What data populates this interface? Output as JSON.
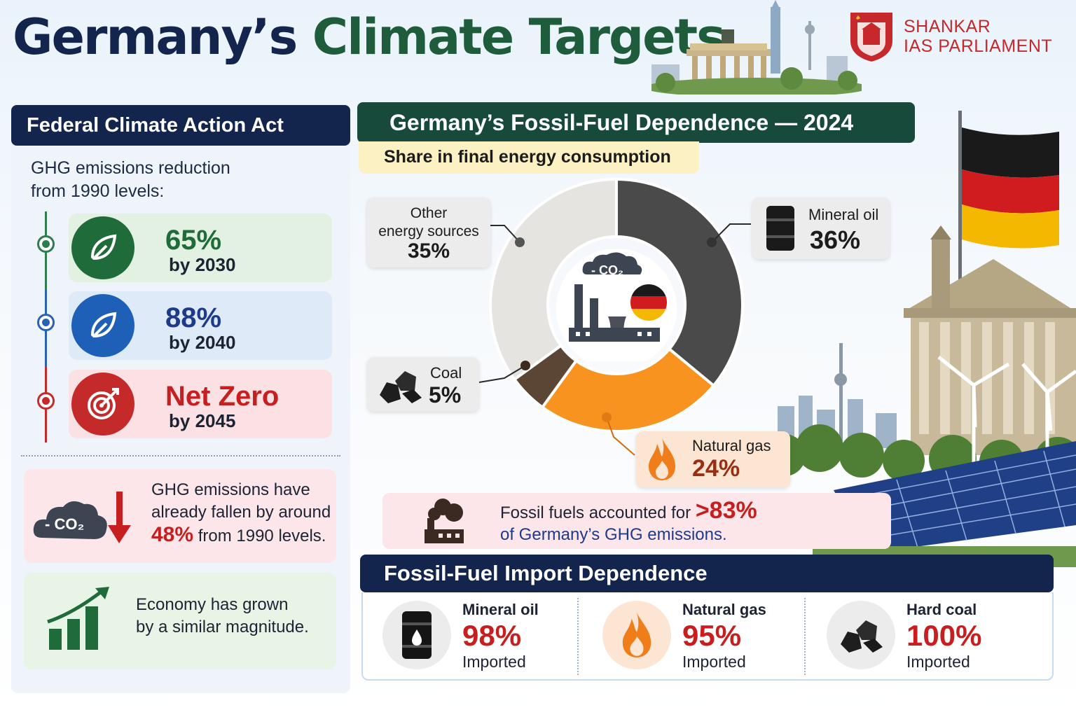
{
  "header": {
    "title_part1": "Germany’s",
    "title_part2": "Climate Targets",
    "logo_line1": "SHANKAR",
    "logo_line2": "IAS PARLIAMENT"
  },
  "left_panel": {
    "heading": "Federal Climate Action Act",
    "subtitle_line1": "GHG emissions reduction",
    "subtitle_line2": "from 1990 levels:",
    "targets": [
      {
        "value": "65%",
        "by": "by 2030",
        "color": "#1f6b3a",
        "bg": "#e2f1e1",
        "icon": "leaf-icon"
      },
      {
        "value": "88%",
        "by": "by 2040",
        "color": "#1e3a8a",
        "bg": "#dfeaf8",
        "icon": "leaf-icon"
      },
      {
        "value": "Net Zero",
        "by": "by 2045",
        "color": "#c71f1f",
        "bg": "#fbe1e4",
        "icon": "target-icon"
      }
    ],
    "fact1": {
      "line1": "GHG emissions have",
      "line2": "already fallen by around",
      "number": "48%",
      "line3_rest": " from 1990 levels.",
      "cloud_label": "- CO₂"
    },
    "fact2": {
      "line1": "Economy has grown",
      "line2": "by a similar magnitude."
    }
  },
  "chart_section": {
    "heading": "Germany’s Fossil-Fuel Dependence — 2024",
    "subheading": "Share in final energy consumption",
    "center_cloud_label": "- CO₂",
    "callouts": {
      "other_line1": "Other",
      "other_line2": "energy sources",
      "other_value": "35%",
      "oil_label": "Mineral oil",
      "oil_value": "36%",
      "coal_label": "Coal",
      "coal_value": "5%",
      "gas_label": "Natural gas",
      "gas_value": "24%"
    },
    "fossil_note": {
      "line1": "Fossil fuels accounted for ",
      "number": ">83%",
      "line2": "of Germany’s GHG emissions."
    }
  },
  "chart_data": {
    "type": "pie",
    "categories": [
      "Mineral oil",
      "Natural gas",
      "Coal",
      "Other energy sources"
    ],
    "values": [
      36,
      24,
      5,
      35
    ],
    "unit": "%",
    "colors": [
      "#4a4a4a",
      "#f7931e",
      "#5b4636",
      "#e6e4e0"
    ],
    "title": "Germany’s Fossil-Fuel Dependence — 2024",
    "subtitle": "Share in final energy consumption"
  },
  "imports": {
    "heading": "Fossil-Fuel Import Dependence",
    "items": [
      {
        "name": "Mineral oil",
        "value": "98%",
        "label": "Imported",
        "icon": "oil-barrel-icon"
      },
      {
        "name": "Natural gas",
        "value": "95%",
        "label": "Imported",
        "icon": "flame-icon"
      },
      {
        "name": "Hard coal",
        "value": "100%",
        "label": "Imported",
        "icon": "coal-icon"
      }
    ]
  }
}
